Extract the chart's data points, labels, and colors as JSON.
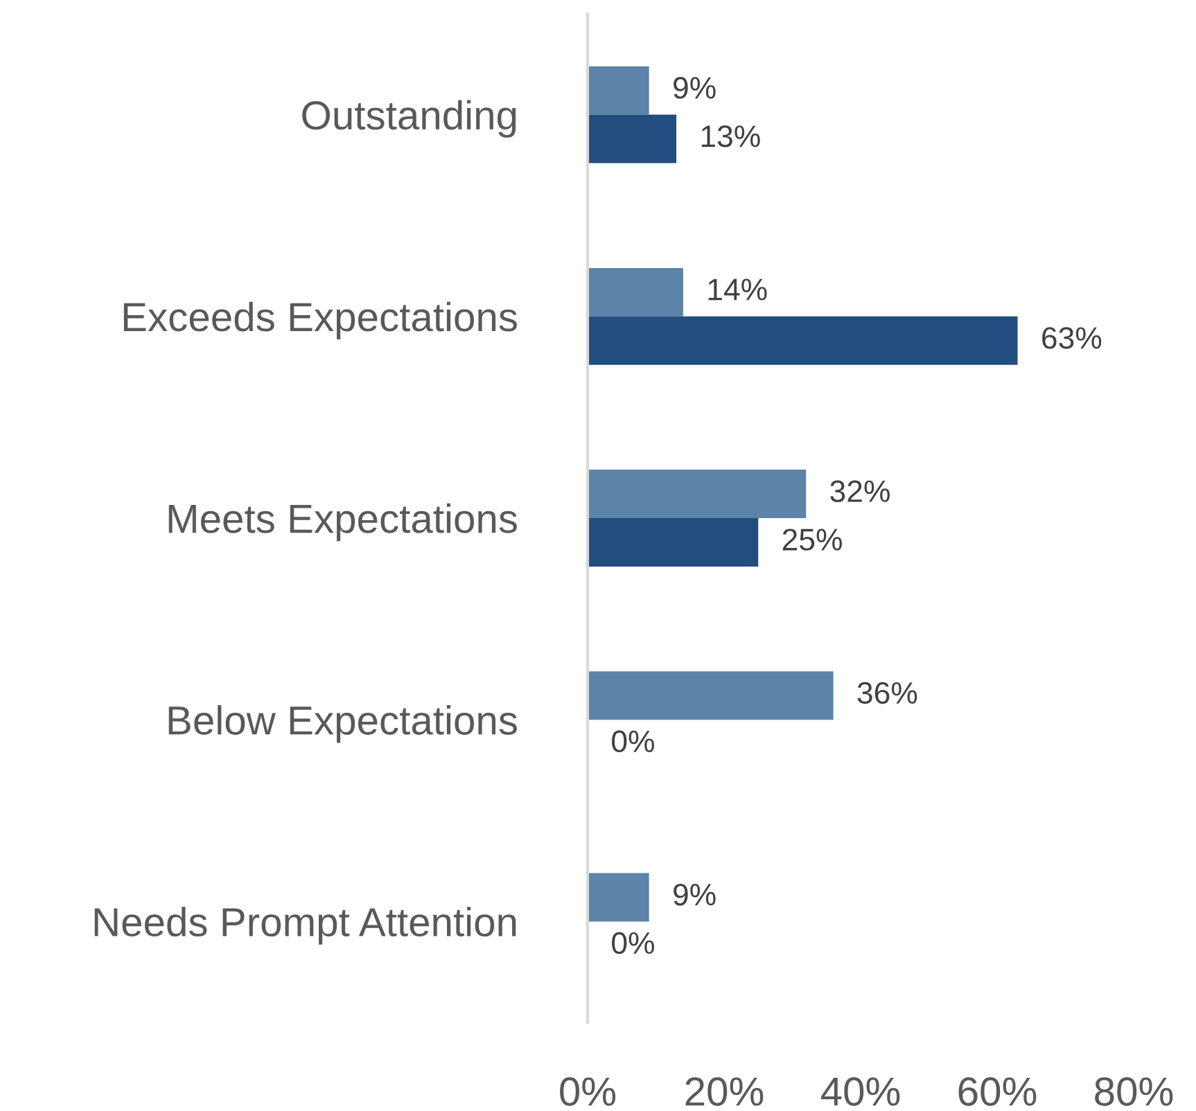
{
  "chart_data": {
    "type": "bar",
    "orientation": "horizontal",
    "categories": [
      "Outstanding",
      "Exceeds Expectations",
      "Meets Expectations",
      "Below Expectations",
      "Needs Prompt Attention"
    ],
    "series": [
      {
        "color": "#5b84a8",
        "values": [
          9,
          14,
          32,
          36,
          9
        ],
        "value_labels": [
          "9%",
          "14%",
          "32%",
          "36%",
          "9%"
        ]
      },
      {
        "color": "#224d7e",
        "values": [
          13,
          63,
          25,
          0,
          0
        ],
        "value_labels": [
          "13%",
          "63%",
          "25%",
          "0%",
          "0%"
        ]
      }
    ],
    "xlim": [
      0,
      80
    ],
    "xticks": [
      {
        "value": 0,
        "label": "0%"
      },
      {
        "value": 20,
        "label": "20%"
      },
      {
        "value": 40,
        "label": "40%"
      },
      {
        "value": 60,
        "label": "60%"
      },
      {
        "value": 80,
        "label": "80%"
      }
    ],
    "grid": false,
    "legend": false
  }
}
